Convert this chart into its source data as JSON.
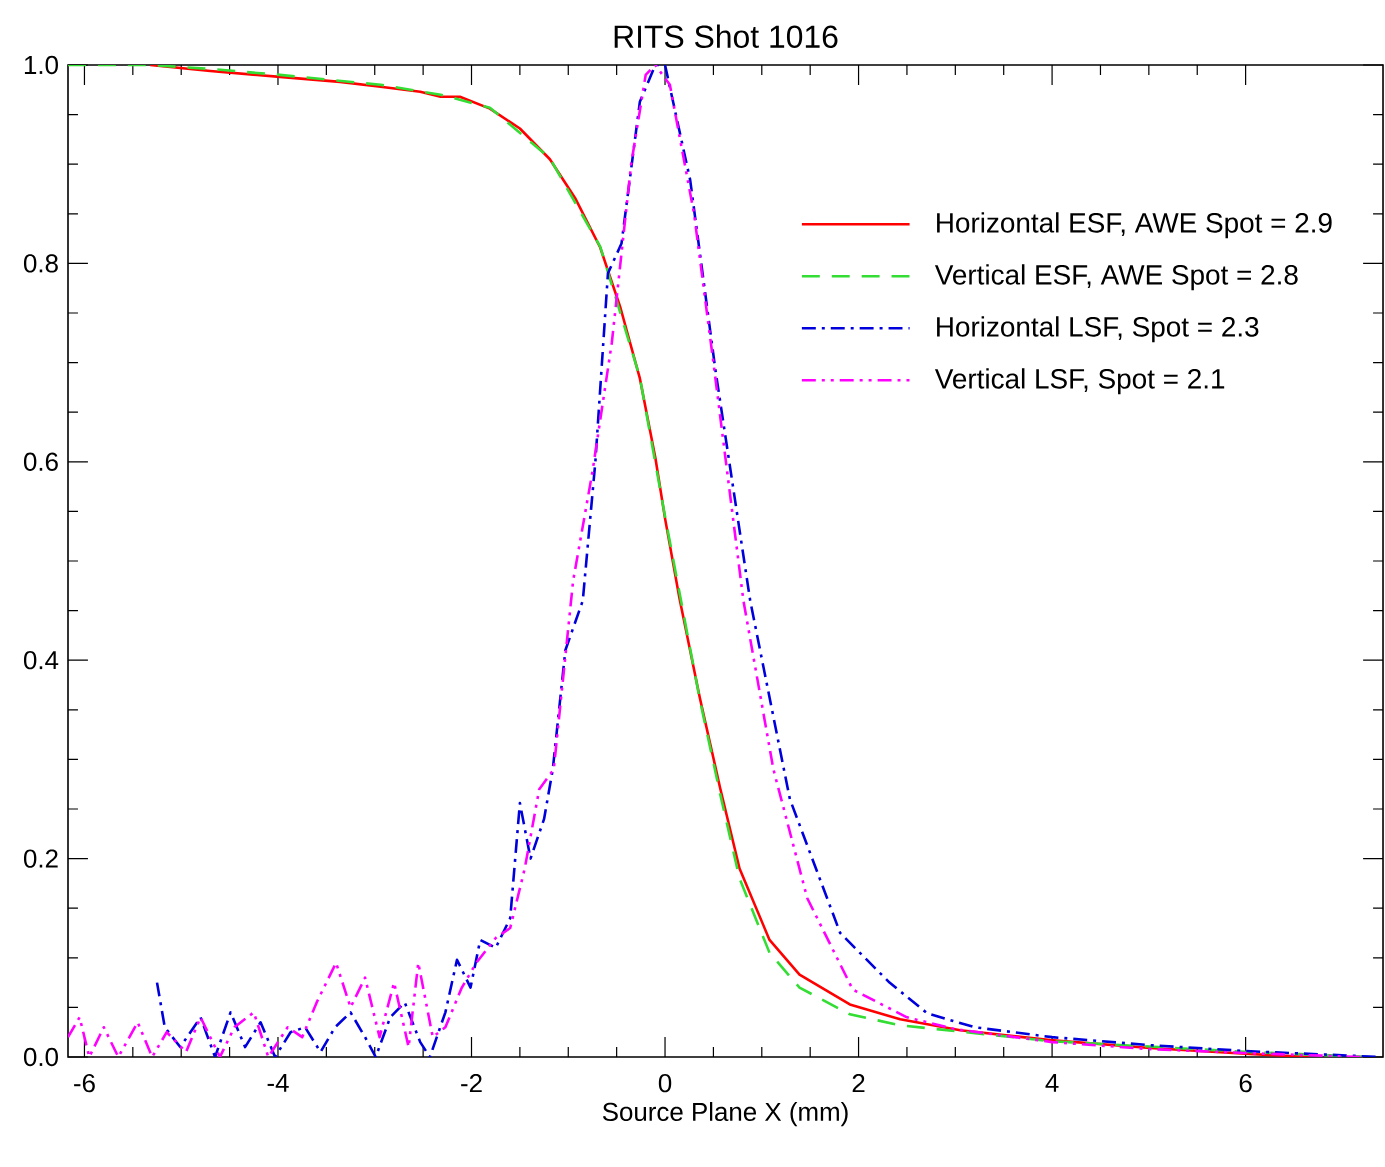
{
  "chart_data": {
    "type": "line",
    "title": "RITS Shot 1016",
    "xlabel": "Source Plane X (mm)",
    "xlim": [
      -6.17,
      7.42
    ],
    "ylim": [
      0,
      1.0
    ],
    "xticks": [
      -6,
      -4,
      -2,
      0,
      2,
      4,
      6
    ],
    "yticks": [
      {
        "value": 0,
        "label": "0.0"
      },
      0.2,
      0.4,
      0.6,
      0.8,
      {
        "value": 1.0,
        "label": "1.0"
      }
    ],
    "grid": false,
    "legend": "top right",
    "series": [
      {
        "name": "Horizontal ESF, AWE Spot = 2.9",
        "color": "#ff0000",
        "line_style": "solid",
        "x": [
          -5.32,
          -4.7,
          -3.98,
          -3.36,
          -2.94,
          -2.53,
          -2.32,
          -2.12,
          -1.81,
          -1.5,
          -1.19,
          -0.93,
          -0.67,
          -0.46,
          -0.26,
          -0.1,
          0.0,
          0.15,
          0.36,
          0.57,
          0.77,
          1.08,
          1.39,
          1.91,
          2.43,
          3.05,
          3.98,
          5.01,
          6.04,
          6.66
        ],
        "values": [
          1.0,
          0.994,
          0.988,
          0.983,
          0.978,
          0.973,
          0.968,
          0.968,
          0.956,
          0.936,
          0.905,
          0.866,
          0.816,
          0.755,
          0.684,
          0.604,
          0.543,
          0.462,
          0.362,
          0.271,
          0.19,
          0.118,
          0.083,
          0.053,
          0.038,
          0.027,
          0.017,
          0.009,
          0.003,
          0.0
        ]
      },
      {
        "name": "Vertical ESF, AWE Spot = 2.8",
        "color": "#33dd33",
        "line_style": "dashed",
        "x": [
          -6.17,
          -5.32,
          -4.7,
          -3.98,
          -2.94,
          -2.32,
          -1.81,
          -1.19,
          -0.67,
          -0.26,
          0.0,
          0.36,
          0.57,
          0.77,
          1.08,
          1.39,
          1.91,
          2.43,
          3.98,
          6.04,
          7.28
        ],
        "values": [
          1.0,
          1.0,
          0.996,
          0.99,
          0.98,
          0.97,
          0.957,
          0.906,
          0.817,
          0.685,
          0.545,
          0.36,
          0.265,
          0.18,
          0.105,
          0.07,
          0.043,
          0.032,
          0.016,
          0.005,
          0.0
        ]
      },
      {
        "name": "Horizontal LSF, Spot = 2.3",
        "color": "#0000dd",
        "line_style": "dashdot",
        "x": [
          -5.25,
          -5.17,
          -5.01,
          -4.8,
          -4.65,
          -4.49,
          -4.34,
          -4.18,
          -4.03,
          -3.87,
          -3.72,
          -3.56,
          -3.41,
          -3.25,
          -3.1,
          -2.99,
          -2.84,
          -2.69,
          -2.53,
          -2.43,
          -2.27,
          -2.15,
          -2.01,
          -1.91,
          -1.75,
          -1.6,
          -1.5,
          -1.39,
          -1.25,
          -1.16,
          -1.03,
          -0.85,
          -0.72,
          -0.59,
          -0.45,
          -0.26,
          -0.1,
          0.0,
          0.26,
          0.52,
          0.88,
          1.29,
          1.81,
          2.32,
          2.71,
          3.2,
          4.0,
          5.0,
          6.0,
          7.39
        ],
        "values": [
          0.075,
          0.03,
          0.01,
          0.04,
          0.0,
          0.045,
          0.01,
          0.035,
          0.0,
          0.025,
          0.03,
          0.005,
          0.03,
          0.045,
          0.02,
          0.0,
          0.04,
          0.055,
          0.015,
          0.0,
          0.045,
          0.098,
          0.07,
          0.118,
          0.11,
          0.14,
          0.256,
          0.2,
          0.24,
          0.29,
          0.41,
          0.46,
          0.6,
          0.79,
          0.82,
          0.963,
          1.0,
          1.0,
          0.884,
          0.693,
          0.46,
          0.26,
          0.125,
          0.075,
          0.044,
          0.03,
          0.02,
          0.012,
          0.006,
          0.0
        ]
      },
      {
        "name": "Vertical LSF, Spot = 2.1",
        "color": "#ff00ff",
        "line_style": "dashdotdot",
        "x": [
          -6.17,
          -6.05,
          -5.95,
          -5.8,
          -5.65,
          -5.45,
          -5.3,
          -5.15,
          -4.95,
          -4.8,
          -4.6,
          -4.45,
          -4.25,
          -4.1,
          -3.9,
          -3.75,
          -3.6,
          -3.4,
          -3.25,
          -3.1,
          -2.95,
          -2.8,
          -2.65,
          -2.55,
          -2.4,
          -2.27,
          -2.1,
          -1.95,
          -1.75,
          -1.6,
          -1.45,
          -1.3,
          -1.15,
          -0.95,
          -0.75,
          -0.55,
          -0.35,
          -0.2,
          -0.1,
          0.05,
          0.3,
          0.5,
          0.81,
          1.12,
          1.47,
          1.94,
          2.5,
          3.0,
          4.0,
          5.0,
          6.0,
          7.2
        ],
        "values": [
          0.02,
          0.04,
          0.0,
          0.03,
          0.0,
          0.035,
          0.0,
          0.025,
          0.005,
          0.04,
          0.0,
          0.03,
          0.045,
          0.0,
          0.03,
          0.02,
          0.055,
          0.095,
          0.05,
          0.08,
          0.02,
          0.075,
          0.01,
          0.095,
          0.02,
          0.03,
          0.07,
          0.095,
          0.12,
          0.13,
          0.19,
          0.27,
          0.29,
          0.48,
          0.59,
          0.72,
          0.9,
          0.99,
          1.0,
          0.98,
          0.85,
          0.7,
          0.46,
          0.29,
          0.16,
          0.068,
          0.04,
          0.028,
          0.015,
          0.008,
          0.004,
          0.0
        ]
      }
    ]
  }
}
